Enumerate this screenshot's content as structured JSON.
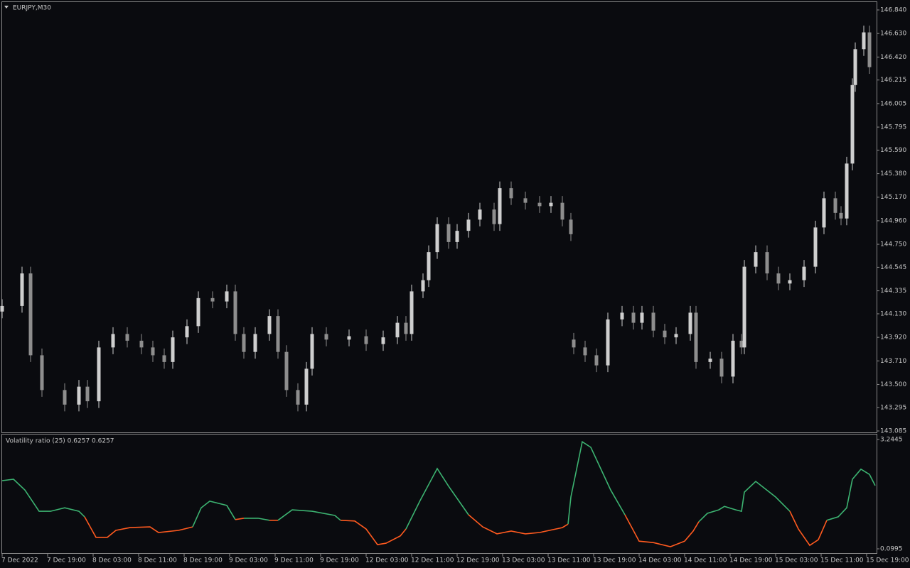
{
  "chart_data": [
    {
      "type": "candlestick",
      "title": "EURJPY,M30",
      "x": [
        0,
        7,
        10,
        14,
        22,
        27,
        30,
        34,
        39,
        44,
        49,
        53,
        57,
        60,
        65,
        69,
        74,
        79,
        82,
        85,
        89,
        94,
        97,
        100,
        104,
        107,
        109,
        114,
        122,
        128,
        134,
        139,
        142,
        144,
        148,
        150,
        153,
        157,
        160,
        164,
        168,
        173,
        175,
        179,
        184,
        189,
        193,
        197,
        200,
        201,
        205,
        209,
        213,
        218,
        222,
        225,
        229,
        233,
        237,
        242,
        244,
        249,
        253,
        257,
        260,
        261,
        265,
        269,
        273,
        277,
        282,
        286,
        289,
        293,
        295,
        297,
        299,
        300,
        303,
        305
      ],
      "open": [
        144.15,
        144.2,
        144.49,
        143.76,
        143.45,
        143.32,
        143.48,
        143.35,
        143.83,
        143.95,
        143.89,
        143.83,
        143.76,
        143.7,
        143.92,
        144.02,
        144.27,
        144.24,
        144.33,
        143.95,
        143.79,
        143.95,
        144.11,
        143.79,
        143.45,
        143.32,
        143.64,
        143.95,
        143.9,
        143.93,
        143.86,
        143.92,
        144.05,
        143.95,
        144.33,
        144.43,
        144.68,
        144.93,
        144.77,
        144.87,
        144.97,
        145.06,
        144.93,
        145.25,
        145.16,
        145.12,
        145.09,
        145.12,
        144.97,
        143.9,
        143.83,
        143.76,
        143.67,
        144.08,
        144.14,
        144.05,
        144.14,
        143.98,
        143.92,
        143.95,
        144.14,
        143.7,
        143.73,
        143.57,
        143.89,
        143.83,
        144.55,
        144.68,
        144.49,
        144.4,
        144.43,
        144.55,
        144.9,
        145.16,
        145.03,
        144.98,
        145.47,
        146.17,
        146.49,
        146.64
      ],
      "high": [
        144.26,
        144.55,
        144.55,
        143.82,
        143.51,
        143.54,
        143.54,
        143.89,
        144.01,
        144.01,
        143.95,
        143.89,
        143.82,
        143.98,
        144.08,
        144.33,
        144.33,
        144.39,
        144.39,
        144.01,
        144.01,
        144.17,
        144.17,
        143.85,
        143.51,
        143.7,
        144.01,
        144.01,
        143.99,
        143.99,
        143.98,
        144.11,
        144.11,
        144.39,
        144.49,
        144.74,
        144.99,
        144.99,
        144.93,
        145.03,
        145.12,
        145.12,
        145.31,
        145.31,
        145.22,
        145.18,
        145.18,
        145.18,
        145.03,
        143.96,
        143.89,
        143.82,
        144.14,
        144.2,
        144.2,
        144.2,
        144.2,
        144.04,
        144.01,
        144.2,
        144.2,
        143.79,
        143.79,
        143.95,
        143.95,
        144.61,
        144.74,
        144.74,
        144.55,
        144.49,
        144.61,
        144.96,
        145.22,
        145.22,
        145.09,
        145.53,
        146.23,
        146.55,
        146.7,
        146.7
      ],
      "low": [
        144.09,
        144.14,
        143.7,
        143.39,
        143.26,
        143.26,
        143.29,
        143.29,
        143.77,
        143.83,
        143.77,
        143.7,
        143.64,
        143.64,
        143.86,
        143.96,
        144.18,
        144.18,
        143.89,
        143.73,
        143.73,
        143.89,
        143.73,
        143.39,
        143.26,
        143.26,
        143.58,
        143.84,
        143.84,
        143.8,
        143.8,
        143.86,
        143.89,
        143.89,
        144.27,
        144.37,
        144.62,
        144.71,
        144.71,
        144.81,
        144.91,
        144.87,
        144.87,
        145.1,
        145.06,
        145.03,
        145.03,
        144.91,
        144.78,
        143.77,
        143.7,
        143.61,
        143.61,
        144.02,
        143.99,
        143.99,
        143.92,
        143.86,
        143.86,
        143.89,
        143.64,
        143.64,
        143.51,
        143.51,
        143.77,
        143.77,
        144.49,
        144.43,
        144.34,
        144.34,
        144.37,
        144.49,
        144.84,
        144.97,
        144.92,
        144.92,
        145.41,
        146.11,
        146.43,
        146.27
      ],
      "close": [
        144.2,
        144.49,
        143.76,
        143.45,
        143.32,
        143.48,
        143.35,
        143.83,
        143.95,
        143.89,
        143.83,
        143.76,
        143.7,
        143.92,
        144.02,
        144.27,
        144.24,
        144.33,
        143.95,
        143.79,
        143.95,
        144.11,
        143.79,
        143.45,
        143.32,
        143.64,
        143.95,
        143.9,
        143.93,
        143.86,
        143.92,
        144.05,
        143.95,
        144.33,
        144.43,
        144.68,
        144.93,
        144.77,
        144.87,
        144.97,
        145.06,
        144.93,
        145.25,
        145.16,
        145.12,
        145.09,
        145.12,
        144.97,
        144.84,
        143.83,
        143.76,
        143.67,
        144.08,
        144.14,
        144.05,
        144.14,
        143.98,
        143.92,
        143.95,
        144.14,
        143.7,
        143.73,
        143.57,
        143.89,
        143.83,
        144.55,
        144.68,
        144.49,
        144.4,
        144.43,
        144.55,
        144.9,
        145.16,
        145.03,
        144.98,
        145.47,
        146.17,
        146.49,
        146.64,
        146.33
      ],
      "up_color": "#cfcfcf",
      "down_color": "#8e8e8e",
      "ylim": [
        143.085,
        146.84
      ],
      "yticks": [
        {
          "value": 146.84,
          "label": "146.840"
        },
        {
          "value": 146.63,
          "label": "146.630"
        },
        {
          "value": 146.42,
          "label": "146.420"
        },
        146.215,
        {
          "value": 146.005,
          "label": "146.005"
        },
        145.795,
        {
          "value": 145.59,
          "label": "145.590"
        },
        {
          "value": 145.38,
          "label": "145.380"
        },
        {
          "value": 145.17,
          "label": "145.170"
        },
        {
          "value": 144.96,
          "label": "144.960"
        },
        {
          "value": 144.75,
          "label": "144.750"
        },
        144.545,
        144.335,
        {
          "value": 144.13,
          "label": "144.130"
        },
        {
          "value": 143.92,
          "label": "143.920"
        },
        {
          "value": 143.71,
          "label": "143.710"
        },
        {
          "value": 143.5,
          "label": "143.500"
        },
        143.295,
        143.085
      ],
      "xlim": [
        0,
        307
      ],
      "xticks": [
        {
          "value": 0,
          "label": "7 Dec 2022"
        },
        {
          "value": 16,
          "label": "7 Dec 19:00"
        },
        {
          "value": 32,
          "label": "8 Dec 03:00"
        },
        {
          "value": 48,
          "label": "8 Dec 11:00"
        },
        {
          "value": 64,
          "label": "8 Dec 19:00"
        },
        {
          "value": 80,
          "label": "9 Dec 03:00"
        },
        {
          "value": 96,
          "label": "9 Dec 11:00"
        },
        {
          "value": 112,
          "label": "9 Dec 19:00"
        },
        {
          "value": 128,
          "label": "12 Dec 03:00"
        },
        {
          "value": 144,
          "label": "12 Dec 11:00"
        },
        {
          "value": 160,
          "label": "12 Dec 19:00"
        },
        {
          "value": 176,
          "label": "13 Dec 03:00"
        },
        {
          "value": 192,
          "label": "13 Dec 11:00"
        },
        {
          "value": 208,
          "label": "13 Dec 19:00"
        },
        {
          "value": 224,
          "label": "14 Dec 03:00"
        },
        {
          "value": 240,
          "label": "14 Dec 11:00"
        },
        {
          "value": 256,
          "label": "14 Dec 19:00"
        },
        {
          "value": 272,
          "label": "15 Dec 03:00"
        },
        {
          "value": 288,
          "label": "15 Dec 11:00"
        },
        {
          "value": 304,
          "label": "15 Dec 19:00"
        }
      ]
    },
    {
      "type": "line",
      "title": "Volatility ratio (25) 0.6257 0.6257",
      "xlim": [
        0,
        307
      ],
      "ylim": [
        0.0995,
        3.2445
      ],
      "yticks": [
        3.2445,
        0.0995
      ],
      "segments": [
        {
          "color": "#3cb371",
          "x": [
            0,
            4,
            8,
            13,
            17,
            22,
            27,
            29
          ],
          "values": [
            2.06,
            2.1,
            1.79,
            1.18,
            1.18,
            1.28,
            1.18,
            1.02
          ]
        },
        {
          "color": "#ff5a1f",
          "x": [
            29,
            33,
            37,
            40,
            45,
            52,
            55,
            62,
            67
          ],
          "values": [
            1.02,
            0.43,
            0.43,
            0.63,
            0.71,
            0.73,
            0.57,
            0.63,
            0.73
          ]
        },
        {
          "color": "#3cb371",
          "x": [
            67,
            70,
            73,
            79,
            82
          ],
          "values": [
            0.73,
            1.28,
            1.47,
            1.35,
            0.94
          ]
        },
        {
          "color": "#ff5a1f",
          "x": [
            82,
            85
          ],
          "values": [
            0.94,
            0.98
          ]
        },
        {
          "color": "#3cb371",
          "x": [
            85,
            90,
            94
          ],
          "values": [
            0.98,
            0.98,
            0.92
          ]
        },
        {
          "color": "#ff5a1f",
          "x": [
            94,
            97
          ],
          "values": [
            0.92,
            0.92
          ]
        },
        {
          "color": "#3cb371",
          "x": [
            97,
            102,
            109,
            117,
            119
          ],
          "values": [
            0.92,
            1.22,
            1.18,
            1.06,
            0.92
          ]
        },
        {
          "color": "#ff5a1f",
          "x": [
            119,
            124,
            128,
            132,
            135,
            140,
            142
          ],
          "values": [
            0.92,
            0.9,
            0.67,
            0.22,
            0.26,
            0.47,
            0.67
          ]
        },
        {
          "color": "#3cb371",
          "x": [
            142,
            147,
            153,
            157,
            164
          ],
          "values": [
            0.67,
            1.49,
            2.41,
            1.9,
            1.08
          ]
        },
        {
          "color": "#ff5a1f",
          "x": [
            164,
            169,
            174,
            179,
            184,
            189,
            197,
            199
          ],
          "values": [
            1.08,
            0.73,
            0.53,
            0.61,
            0.53,
            0.57,
            0.71,
            0.81
          ]
        },
        {
          "color": "#3cb371",
          "x": [
            199,
            200,
            204,
            207,
            214,
            219
          ],
          "values": [
            0.81,
            1.59,
            3.18,
            3.02,
            1.79,
            1.08
          ]
        },
        {
          "color": "#ff5a1f",
          "x": [
            219,
            224,
            229,
            235,
            240,
            243,
            245
          ],
          "values": [
            1.08,
            0.32,
            0.28,
            0.16,
            0.32,
            0.61,
            0.88
          ]
        },
        {
          "color": "#3cb371",
          "x": [
            245,
            248,
            252,
            254,
            258,
            260,
            261,
            265,
            272,
            277
          ],
          "values": [
            0.88,
            1.12,
            1.22,
            1.32,
            1.22,
            1.18,
            1.73,
            2.04,
            1.59,
            1.18
          ]
        },
        {
          "color": "#ff5a1f",
          "x": [
            277,
            280,
            284,
            287,
            290
          ],
          "values": [
            1.18,
            0.67,
            0.2,
            0.36,
            0.92
          ]
        },
        {
          "color": "#3cb371",
          "x": [
            290,
            294,
            297,
            299,
            302,
            305,
            307
          ],
          "values": [
            0.92,
            1.02,
            1.28,
            2.1,
            2.39,
            2.24,
            1.92
          ]
        }
      ]
    }
  ]
}
